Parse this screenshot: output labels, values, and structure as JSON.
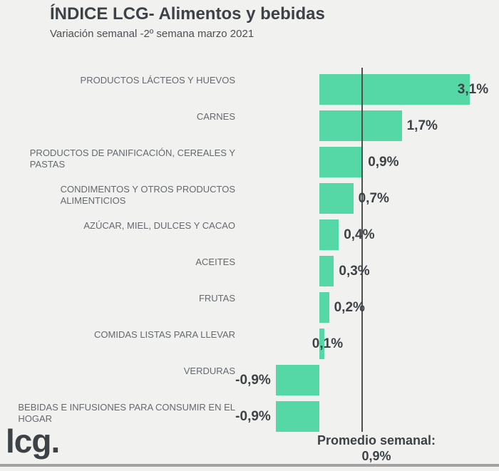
{
  "header": {
    "title": "ÍNDICE LCG- Alimentos y bebidas",
    "subtitle": "Variación semanal -2º semana marzo 2021"
  },
  "annotation": {
    "line1": "Promedio semanal:",
    "line2": "0,9%"
  },
  "footer": {
    "logo": "lcg."
  },
  "colors": {
    "background": "#f1f1f0",
    "bar": "#55d8a5",
    "title": "#3d4247",
    "category_label": "#64696e",
    "value_label": "#3d4247",
    "avg_line": "#4f4f4f",
    "bottom_rule": "#a3a3a3"
  },
  "chart_data": {
    "type": "bar",
    "orientation": "horizontal",
    "title": "ÍNDICE LCG- Alimentos y bebidas",
    "subtitle": "Variación semanal -2º semana marzo 2021",
    "unit": "%",
    "xlim": [
      -1.0,
      3.5
    ],
    "grid": false,
    "legend": false,
    "average_line": {
      "value": 0.9,
      "display": "0,9%",
      "label": "Promedio semanal:"
    },
    "categories": [
      "PRODUCTOS LÁCTEOS Y HUEVOS",
      "CARNES",
      "PRODUCTOS DE PANIFICACIÓN, CEREALES Y PASTAS",
      "CONDIMENTOS Y OTROS PRODUCTOS ALIMENTICIOS",
      "AZÚCAR, MIEL, DULCES Y CACAO",
      "ACEITES",
      "FRUTAS",
      "COMIDAS LISTAS PARA LLEVAR",
      "VERDURAS",
      "BEBIDAS E INFUSIONES PARA CONSUMIR EN EL HOGAR"
    ],
    "values": [
      3.1,
      1.7,
      0.9,
      0.7,
      0.4,
      0.3,
      0.2,
      0.1,
      -0.9,
      -0.9
    ],
    "items": [
      {
        "label_lines": [
          "PRODUCTOS LÁCTEOS Y HUEVOS"
        ],
        "value": 3.1,
        "display": "3,1%",
        "label_mode": "overlap"
      },
      {
        "label_lines": [
          "CARNES"
        ],
        "value": 1.7,
        "display": "1,7%",
        "label_mode": "outside"
      },
      {
        "label_lines": [
          "PRODUCTOS DE PANIFICACIÓN, CEREALES Y",
          "PASTAS"
        ],
        "value": 0.9,
        "display": "0,9%",
        "label_mode": "outside"
      },
      {
        "label_lines": [
          "CONDIMENTOS Y OTROS PRODUCTOS",
          "ALIMENTICIOS"
        ],
        "value": 0.7,
        "display": "0,7%",
        "label_mode": "outside"
      },
      {
        "label_lines": [
          "AZÚCAR, MIEL, DULCES Y CACAO"
        ],
        "value": 0.4,
        "display": "0,4%",
        "label_mode": "outside"
      },
      {
        "label_lines": [
          "ACEITES"
        ],
        "value": 0.3,
        "display": "0,3%",
        "label_mode": "outside"
      },
      {
        "label_lines": [
          "FRUTAS"
        ],
        "value": 0.2,
        "display": "0,2%",
        "label_mode": "outside"
      },
      {
        "label_lines": [
          "COMIDAS LISTAS PARA LLEVAR"
        ],
        "value": 0.1,
        "display": "0,1%",
        "label_mode": "overlap"
      },
      {
        "label_lines": [
          "VERDURAS"
        ],
        "value": -0.9,
        "display": "-0,9%",
        "label_mode": "outside"
      },
      {
        "label_lines": [
          "BEBIDAS E INFUSIONES PARA CONSUMIR EN EL",
          "HOGAR"
        ],
        "value": -0.9,
        "display": "-0,9%",
        "label_mode": "outside"
      }
    ]
  }
}
